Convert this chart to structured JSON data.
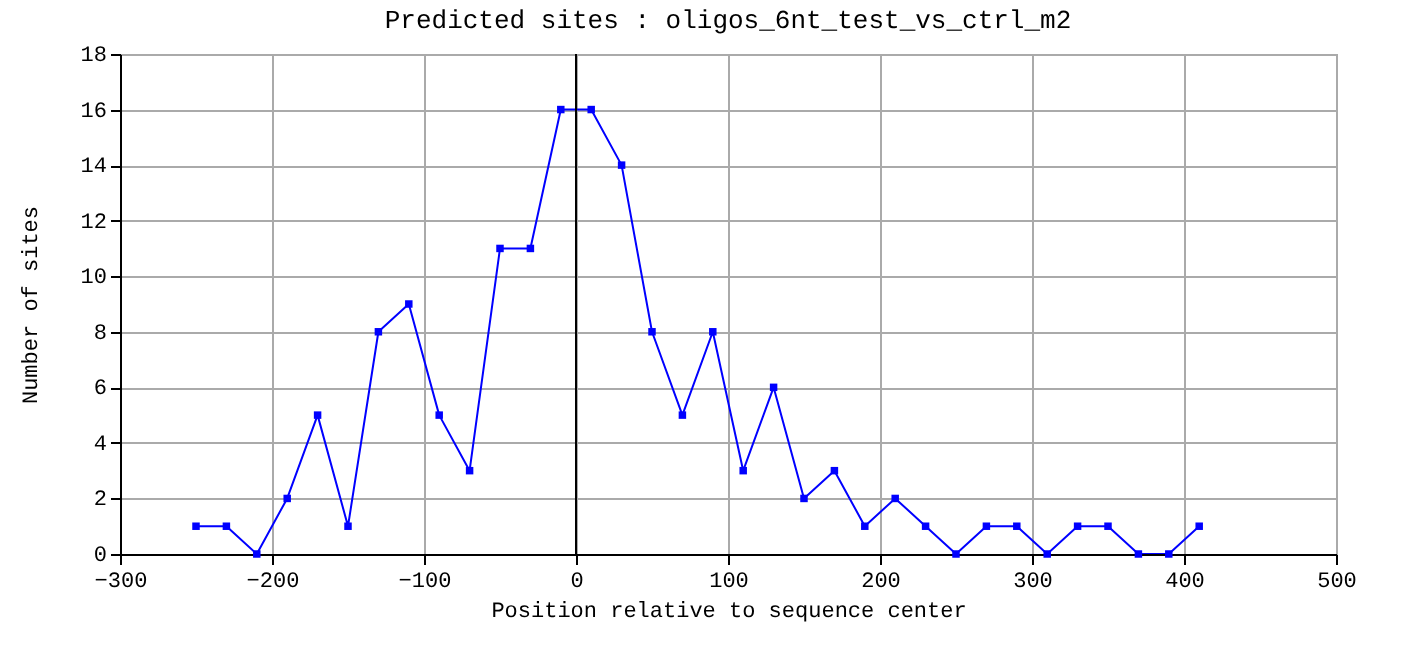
{
  "chart_data": {
    "type": "line",
    "title": "Predicted sites : oligos_6nt_test_vs_ctrl_m2",
    "xlabel": "Position relative to sequence center",
    "ylabel": "Number of sites",
    "x": [
      -250,
      -230,
      -210,
      -190,
      -170,
      -150,
      -130,
      -110,
      -90,
      -70,
      -50,
      -30,
      -10,
      10,
      30,
      50,
      70,
      90,
      110,
      130,
      150,
      170,
      190,
      210,
      230,
      250,
      270,
      290,
      310,
      330,
      350,
      370,
      390,
      410
    ],
    "series": [
      {
        "color": "#0000ff",
        "values": [
          1,
          1,
          0,
          2,
          5,
          1,
          8,
          9,
          5,
          3,
          11,
          11,
          16,
          16,
          14,
          8,
          5,
          8,
          3,
          6,
          2,
          3,
          1,
          2,
          1,
          0,
          1,
          1,
          0,
          1,
          1,
          0,
          0,
          1
        ]
      }
    ],
    "xlim": [
      -300,
      500
    ],
    "xticks": [
      -300,
      -200,
      -100,
      0,
      100,
      200,
      300,
      400,
      500
    ],
    "ylim": [
      0,
      18
    ],
    "yticks": [
      0,
      2,
      4,
      6,
      8,
      10,
      12,
      14,
      16,
      18
    ],
    "ref_lines": [
      {
        "axis": "x",
        "value": 0,
        "color": "#000000"
      }
    ],
    "grid": true,
    "marker": "square"
  }
}
